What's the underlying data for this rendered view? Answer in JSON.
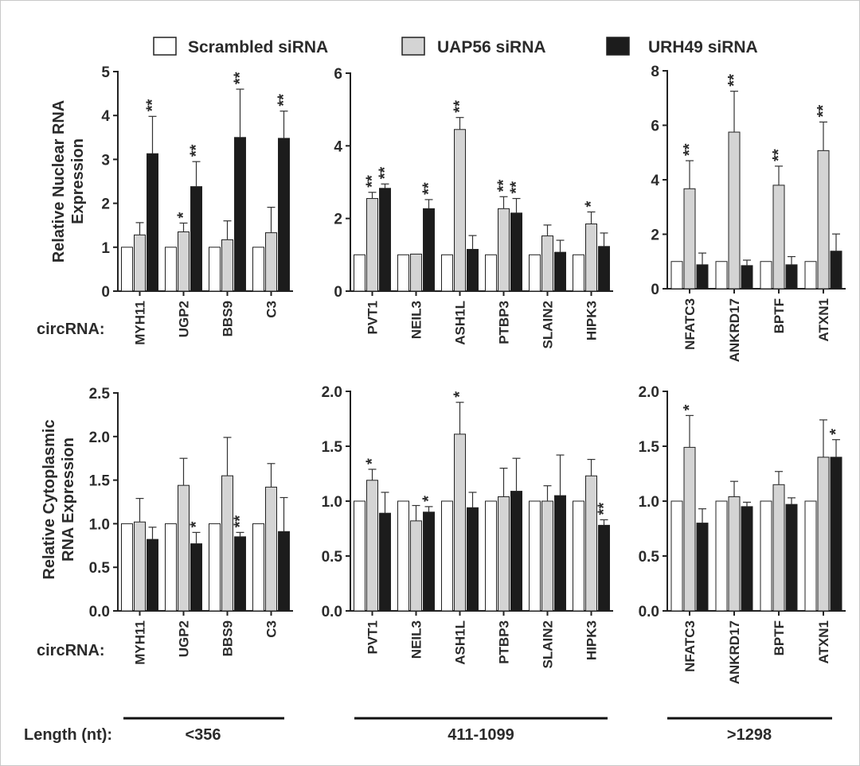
{
  "legend": [
    {
      "name": "Scrambled siRNA",
      "color": "#ffffff"
    },
    {
      "name": "UAP56 siRNA",
      "color": "#d4d4d4"
    },
    {
      "name": "URH49 siRNA",
      "color": "#1c1c1c"
    }
  ],
  "row_labels": {
    "nuclear": [
      "Relative Nuclear RNA",
      "Expression"
    ],
    "cytoplasmic": [
      "Relative Cytoplasmic",
      "RNA Expression"
    ]
  },
  "circ_label": "circRNA:",
  "length_label": "Length (nt):",
  "length_groups": [
    "<356",
    "411-1099",
    ">1298"
  ],
  "chart_data": [
    {
      "type": "bar",
      "row": "nuclear",
      "group": "<356",
      "ylim": [
        0,
        5
      ],
      "yticks": [
        "0",
        "1",
        "2",
        "3",
        "4",
        "5"
      ],
      "categories": [
        "MYH11",
        "UGP2",
        "BBS9",
        "C3"
      ],
      "series": [
        {
          "name": "Scrambled siRNA",
          "values": [
            1,
            1,
            1,
            1
          ],
          "errors": [
            0,
            0,
            0,
            0
          ],
          "sig": [
            "",
            "",
            "",
            ""
          ]
        },
        {
          "name": "UAP56 siRNA",
          "values": [
            1.28,
            1.35,
            1.17,
            1.33
          ],
          "errors": [
            0.28,
            0.2,
            0.43,
            0.58
          ],
          "sig": [
            "",
            "*",
            "",
            ""
          ]
        },
        {
          "name": "URH49 siRNA",
          "values": [
            3.13,
            2.38,
            3.5,
            3.48
          ],
          "errors": [
            0.85,
            0.57,
            1.1,
            0.62
          ],
          "sig": [
            "**",
            "**",
            "**",
            "**"
          ]
        }
      ]
    },
    {
      "type": "bar",
      "row": "nuclear",
      "group": "411-1099",
      "ylim": [
        0,
        6
      ],
      "yticks": [
        "0",
        "2",
        "4",
        "6"
      ],
      "categories": [
        "PVT1",
        "NEIL3",
        "ASH1L",
        "PTBP3",
        "SLAIN2",
        "HIPK3"
      ],
      "series": [
        {
          "name": "Scrambled siRNA",
          "values": [
            1,
            1,
            1,
            1,
            1,
            1
          ],
          "errors": [
            0,
            0,
            0,
            0,
            0,
            0
          ],
          "sig": [
            "",
            "",
            "",
            "",
            "",
            ""
          ]
        },
        {
          "name": "UAP56 siRNA",
          "values": [
            2.55,
            1.02,
            4.45,
            2.27,
            1.52,
            1.85
          ],
          "errors": [
            0.17,
            0,
            0.33,
            0.33,
            0.3,
            0.33
          ],
          "sig": [
            "**",
            "",
            "**",
            "**",
            "",
            "*"
          ]
        },
        {
          "name": "URH49 siRNA",
          "values": [
            2.83,
            2.27,
            1.15,
            2.15,
            1.07,
            1.23
          ],
          "errors": [
            0.12,
            0.25,
            0.38,
            0.4,
            0.33,
            0.37
          ],
          "sig": [
            "**",
            "**",
            "",
            "**",
            "",
            ""
          ]
        }
      ]
    },
    {
      "type": "bar",
      "row": "nuclear",
      "group": ">1298",
      "ylim": [
        0,
        8
      ],
      "yticks": [
        "0",
        "2",
        "4",
        "6",
        "8"
      ],
      "categories": [
        "NFATC3",
        "ANKRD17",
        "BPTF",
        "ATXN1"
      ],
      "series": [
        {
          "name": "Scrambled siRNA",
          "values": [
            1,
            1,
            1,
            1
          ],
          "errors": [
            0,
            0,
            0,
            0
          ],
          "sig": [
            "",
            "",
            "",
            ""
          ]
        },
        {
          "name": "UAP56 siRNA",
          "values": [
            3.67,
            5.75,
            3.8,
            5.07
          ],
          "errors": [
            1.03,
            1.5,
            0.7,
            1.05
          ],
          "sig": [
            "**",
            "**",
            "**",
            "**"
          ]
        },
        {
          "name": "URH49 siRNA",
          "values": [
            0.88,
            0.85,
            0.88,
            1.38
          ],
          "errors": [
            0.43,
            0.2,
            0.3,
            0.63
          ],
          "sig": [
            "",
            "",
            "",
            ""
          ]
        }
      ]
    },
    {
      "type": "bar",
      "row": "cytoplasmic",
      "group": "<356",
      "ylim": [
        0,
        2.5
      ],
      "yticks": [
        "0.0",
        "0.5",
        "1.0",
        "1.5",
        "2.0",
        "2.5"
      ],
      "categories": [
        "MYH11",
        "UGP2",
        "BBS9",
        "C3"
      ],
      "series": [
        {
          "name": "Scrambled siRNA",
          "values": [
            1,
            1,
            1,
            1
          ],
          "errors": [
            0,
            0,
            0,
            0
          ],
          "sig": [
            "",
            "",
            "",
            ""
          ]
        },
        {
          "name": "UAP56 siRNA",
          "values": [
            1.02,
            1.44,
            1.55,
            1.42
          ],
          "errors": [
            0.27,
            0.31,
            0.44,
            0.27
          ],
          "sig": [
            "",
            "",
            "",
            ""
          ]
        },
        {
          "name": "URH49 siRNA",
          "values": [
            0.82,
            0.77,
            0.85,
            0.91
          ],
          "errors": [
            0.14,
            0.13,
            0.05,
            0.39
          ],
          "sig": [
            "",
            "*",
            "**",
            ""
          ]
        }
      ]
    },
    {
      "type": "bar",
      "row": "cytoplasmic",
      "group": "411-1099",
      "ylim": [
        0,
        2.0
      ],
      "yticks": [
        "0.0",
        "0.5",
        "1.0",
        "1.5",
        "2.0"
      ],
      "categories": [
        "PVT1",
        "NEIL3",
        "ASH1L",
        "PTBP3",
        "SLAIN2",
        "HIPK3"
      ],
      "series": [
        {
          "name": "Scrambled siRNA",
          "values": [
            1,
            1,
            1,
            1,
            1,
            1
          ],
          "errors": [
            0,
            0,
            0,
            0,
            0,
            0
          ],
          "sig": [
            "",
            "",
            "",
            "",
            "",
            ""
          ]
        },
        {
          "name": "UAP56 siRNA",
          "values": [
            1.19,
            0.82,
            1.61,
            1.04,
            1.0,
            1.23
          ],
          "errors": [
            0.1,
            0.14,
            0.29,
            0.26,
            0.14,
            0.15
          ],
          "sig": [
            "*",
            "",
            "*",
            "",
            "",
            ""
          ]
        },
        {
          "name": "URH49 siRNA",
          "values": [
            0.89,
            0.9,
            0.94,
            1.09,
            1.05,
            0.78
          ],
          "errors": [
            0.19,
            0.05,
            0.14,
            0.3,
            0.37,
            0.05
          ],
          "sig": [
            "",
            "*",
            "",
            "",
            "",
            "**"
          ]
        }
      ]
    },
    {
      "type": "bar",
      "row": "cytoplasmic",
      "group": ">1298",
      "ylim": [
        0,
        2.0
      ],
      "yticks": [
        "0.0",
        "0.5",
        "1.0",
        "1.5",
        "2.0"
      ],
      "categories": [
        "NFATC3",
        "ANKRD17",
        "BPTF",
        "ATXN1"
      ],
      "series": [
        {
          "name": "Scrambled siRNA",
          "values": [
            1,
            1,
            1,
            1
          ],
          "errors": [
            0,
            0,
            0,
            0
          ],
          "sig": [
            "",
            "",
            "",
            ""
          ]
        },
        {
          "name": "UAP56 siRNA",
          "values": [
            1.49,
            1.04,
            1.15,
            1.4
          ],
          "errors": [
            0.29,
            0.14,
            0.12,
            0.34
          ],
          "sig": [
            "*",
            "",
            "",
            ""
          ]
        },
        {
          "name": "URH49 siRNA",
          "values": [
            0.8,
            0.95,
            0.97,
            1.4
          ],
          "errors": [
            0.13,
            0.04,
            0.06,
            0.16
          ],
          "sig": [
            "",
            "",
            "",
            "*"
          ]
        }
      ]
    }
  ]
}
